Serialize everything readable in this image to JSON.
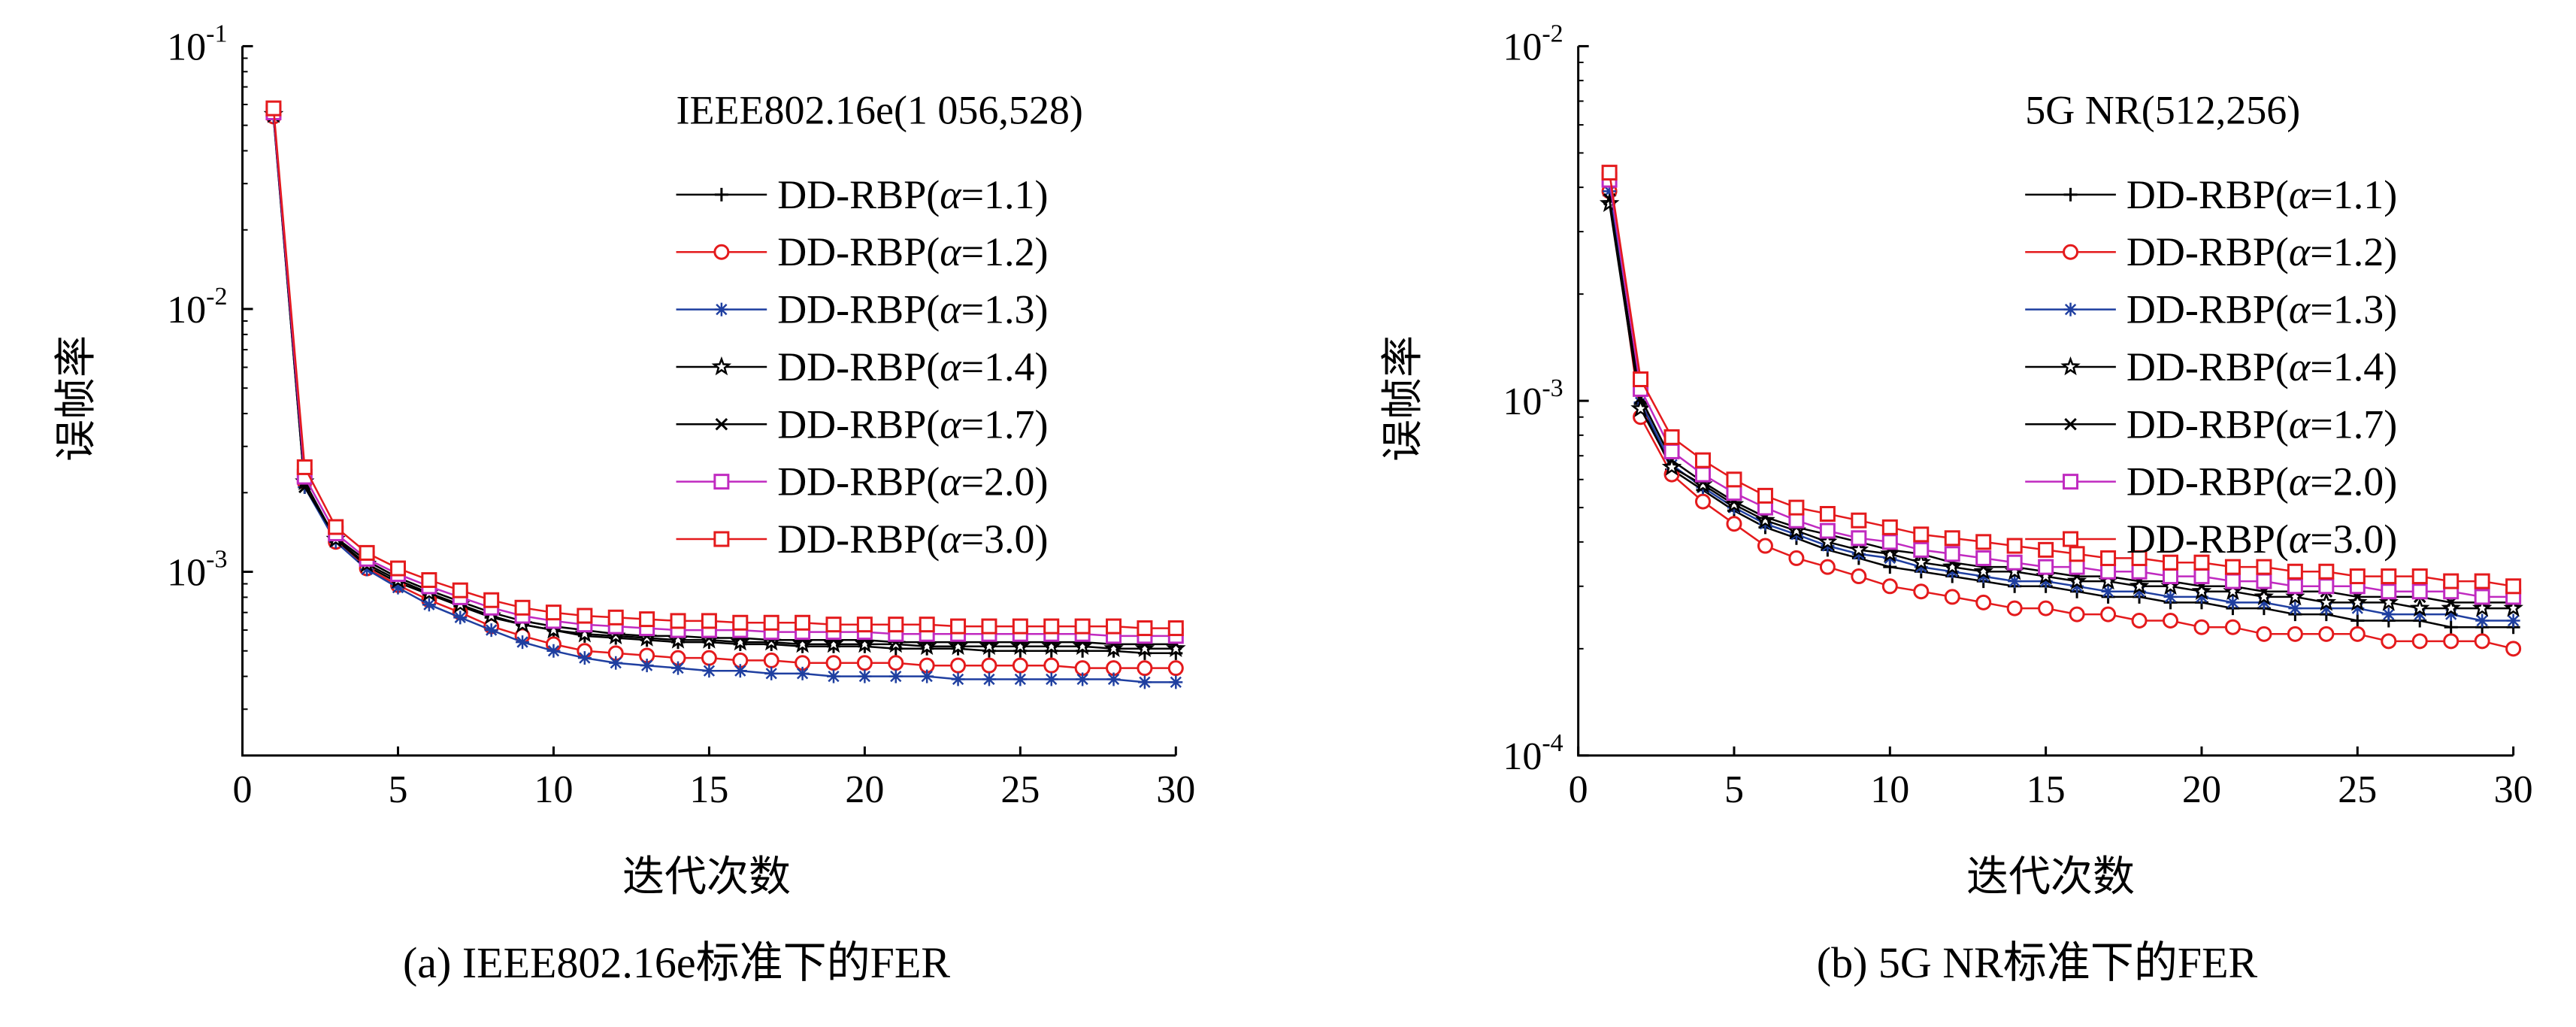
{
  "chart_data": [
    {
      "type": "line",
      "panel": "a",
      "title": "IEEE802.16e(1 056,528)",
      "xlabel": "迭代次数",
      "ylabel": "误帧率",
      "yscale": "log",
      "xlim": [
        0,
        30
      ],
      "ylim": [
        0.0002,
        0.1
      ],
      "xticks": [
        0,
        5,
        10,
        15,
        20,
        25,
        30
      ],
      "yticks": [
        {
          "value": 0.1,
          "base": "10",
          "exp": "-1"
        },
        {
          "value": 0.01,
          "base": "10",
          "exp": "-2"
        },
        {
          "value": 0.001,
          "base": "10",
          "exp": "-3"
        }
      ],
      "legend_position": "top-right",
      "x": [
        1,
        2,
        3,
        4,
        5,
        6,
        7,
        8,
        9,
        10,
        11,
        12,
        13,
        14,
        15,
        16,
        17,
        18,
        19,
        20,
        21,
        22,
        23,
        24,
        25,
        26,
        27,
        28,
        29,
        30
      ],
      "series": [
        {
          "name_prefix": "DD-RBP(",
          "alpha_symbol": "α",
          "name_value": "=1.1)",
          "color": "#000000",
          "marker": "plus",
          "values": [
            0.054,
            0.0021,
            0.00132,
            0.00105,
            0.00091,
            0.00082,
            0.00074,
            0.00067,
            0.00063,
            0.0006,
            0.00057,
            0.00056,
            0.00055,
            0.00054,
            0.00054,
            0.00053,
            0.00053,
            0.00052,
            0.00052,
            0.00052,
            0.00051,
            0.00051,
            0.00051,
            0.0005,
            0.0005,
            0.0005,
            0.0005,
            0.0005,
            0.00049,
            0.00049
          ]
        },
        {
          "name_prefix": "DD-RBP(",
          "alpha_symbol": "α",
          "name_value": "=1.2)",
          "color": "#e41a1c",
          "marker": "circle",
          "values": [
            0.054,
            0.0022,
            0.0013,
            0.00103,
            0.00089,
            0.00078,
            0.0007,
            0.00062,
            0.00057,
            0.00053,
            0.0005,
            0.00049,
            0.00048,
            0.00047,
            0.00047,
            0.00046,
            0.00046,
            0.00045,
            0.00045,
            0.00045,
            0.00045,
            0.00044,
            0.00044,
            0.00044,
            0.00044,
            0.00044,
            0.00043,
            0.00043,
            0.00043,
            0.00043
          ]
        },
        {
          "name_prefix": "DD-RBP(",
          "alpha_symbol": "α",
          "name_value": "=1.3)",
          "color": "#1f3fa0",
          "marker": "asterisk",
          "values": [
            0.054,
            0.0021,
            0.0013,
            0.00102,
            0.00087,
            0.00075,
            0.00067,
            0.0006,
            0.00054,
            0.0005,
            0.00047,
            0.00045,
            0.00044,
            0.00043,
            0.00042,
            0.00042,
            0.00041,
            0.00041,
            0.0004,
            0.0004,
            0.0004,
            0.0004,
            0.00039,
            0.00039,
            0.00039,
            0.00039,
            0.00039,
            0.00039,
            0.00038,
            0.00038
          ]
        },
        {
          "name_prefix": "DD-RBP(",
          "alpha_symbol": "α",
          "name_value": "=1.4)",
          "color": "#000000",
          "marker": "star",
          "values": [
            0.055,
            0.0022,
            0.00133,
            0.00107,
            0.00093,
            0.00083,
            0.00075,
            0.00068,
            0.00063,
            0.0006,
            0.00058,
            0.00057,
            0.00056,
            0.00055,
            0.00055,
            0.00054,
            0.00054,
            0.00053,
            0.00053,
            0.00053,
            0.00053,
            0.00052,
            0.00052,
            0.00052,
            0.00052,
            0.00052,
            0.00052,
            0.00051,
            0.00051,
            0.00051
          ]
        },
        {
          "name_prefix": "DD-RBP(",
          "alpha_symbol": "α",
          "name_value": "=1.7)",
          "color": "#000000",
          "marker": "x",
          "values": [
            0.055,
            0.0021,
            0.00135,
            0.0011,
            0.00095,
            0.00085,
            0.00077,
            0.0007,
            0.00065,
            0.00062,
            0.0006,
            0.00058,
            0.00057,
            0.00057,
            0.00056,
            0.00056,
            0.00055,
            0.00055,
            0.00055,
            0.00055,
            0.00054,
            0.00054,
            0.00054,
            0.00054,
            0.00054,
            0.00054,
            0.00054,
            0.00053,
            0.00053,
            0.00053
          ]
        },
        {
          "name_prefix": "DD-RBP(",
          "alpha_symbol": "α",
          "name_value": "=2.0)",
          "color": "#c02ac0",
          "marker": "square",
          "values": [
            0.056,
            0.0023,
            0.0014,
            0.00112,
            0.00098,
            0.00088,
            0.0008,
            0.00073,
            0.00068,
            0.00065,
            0.00063,
            0.00062,
            0.00061,
            0.0006,
            0.0006,
            0.0006,
            0.00059,
            0.00059,
            0.00059,
            0.00059,
            0.00058,
            0.00058,
            0.00058,
            0.00058,
            0.00058,
            0.00058,
            0.00058,
            0.00057,
            0.00057,
            0.00057
          ]
        },
        {
          "name_prefix": "DD-RBP(",
          "alpha_symbol": "α",
          "name_value": "=3.0)",
          "color": "#e41a1c",
          "marker": "square",
          "values": [
            0.058,
            0.0025,
            0.00148,
            0.00118,
            0.00103,
            0.00093,
            0.00085,
            0.00078,
            0.00073,
            0.0007,
            0.00068,
            0.00067,
            0.00066,
            0.00065,
            0.00065,
            0.00064,
            0.00064,
            0.00064,
            0.00063,
            0.00063,
            0.00063,
            0.00063,
            0.00062,
            0.00062,
            0.00062,
            0.00062,
            0.00062,
            0.00062,
            0.00061,
            0.00061
          ]
        }
      ]
    },
    {
      "type": "line",
      "panel": "b",
      "title": "5G NR(512,256)",
      "xlabel": "迭代次数",
      "ylabel": "误帧率",
      "yscale": "log",
      "xlim": [
        0,
        30
      ],
      "ylim": [
        0.0001,
        0.01
      ],
      "xticks": [
        0,
        5,
        10,
        15,
        20,
        25,
        30
      ],
      "yticks": [
        {
          "value": 0.01,
          "base": "10",
          "exp": "-2"
        },
        {
          "value": 0.001,
          "base": "10",
          "exp": "-3"
        },
        {
          "value": 0.0001,
          "base": "10",
          "exp": "-4"
        }
      ],
      "legend_position": "top-right",
      "x": [
        1,
        2,
        3,
        4,
        5,
        6,
        7,
        8,
        9,
        10,
        11,
        12,
        13,
        14,
        15,
        16,
        17,
        18,
        19,
        20,
        21,
        22,
        23,
        24,
        25,
        26,
        27,
        28,
        29,
        30
      ],
      "series": [
        {
          "name_prefix": "DD-RBP(",
          "alpha_symbol": "α",
          "name_value": "=1.1)",
          "color": "#000000",
          "marker": "plus",
          "values": [
            0.0038,
            0.00098,
            0.00064,
            0.00056,
            0.00049,
            0.00044,
            0.00041,
            0.00038,
            0.00036,
            0.00034,
            0.00033,
            0.00032,
            0.00031,
            0.0003,
            0.0003,
            0.00029,
            0.00028,
            0.00028,
            0.00027,
            0.00027,
            0.00026,
            0.00026,
            0.00025,
            0.00025,
            0.00024,
            0.00024,
            0.00024,
            0.00023,
            0.00023,
            0.00023
          ]
        },
        {
          "name_prefix": "DD-RBP(",
          "alpha_symbol": "α",
          "name_value": "=1.2)",
          "color": "#e41a1c",
          "marker": "circle",
          "values": [
            0.0039,
            0.0009,
            0.00062,
            0.00052,
            0.00045,
            0.00039,
            0.00036,
            0.00034,
            0.00032,
            0.0003,
            0.00029,
            0.00028,
            0.00027,
            0.00026,
            0.00026,
            0.00025,
            0.00025,
            0.00024,
            0.00024,
            0.00023,
            0.00023,
            0.00022,
            0.00022,
            0.00022,
            0.00022,
            0.00021,
            0.00021,
            0.00021,
            0.00021,
            0.0002
          ]
        },
        {
          "name_prefix": "DD-RBP(",
          "alpha_symbol": "α",
          "name_value": "=1.3)",
          "color": "#1f3fa0",
          "marker": "asterisk",
          "values": [
            0.0039,
            0.00099,
            0.00066,
            0.00057,
            0.0005,
            0.00045,
            0.00042,
            0.00039,
            0.00037,
            0.00036,
            0.00034,
            0.00033,
            0.00032,
            0.00031,
            0.00031,
            0.0003,
            0.00029,
            0.00029,
            0.00028,
            0.00028,
            0.00027,
            0.00027,
            0.00026,
            0.00026,
            0.00026,
            0.00025,
            0.00025,
            0.00025,
            0.00024,
            0.00024
          ]
        },
        {
          "name_prefix": "DD-RBP(",
          "alpha_symbol": "α",
          "name_value": "=1.4)",
          "color": "#000000",
          "marker": "star",
          "values": [
            0.0036,
            0.00095,
            0.00065,
            0.00058,
            0.00051,
            0.00046,
            0.00043,
            0.0004,
            0.00038,
            0.00037,
            0.00035,
            0.00034,
            0.00033,
            0.00033,
            0.00032,
            0.00031,
            0.00031,
            0.0003,
            0.0003,
            0.00029,
            0.00029,
            0.00028,
            0.00028,
            0.00027,
            0.00027,
            0.00027,
            0.00026,
            0.00026,
            0.00026,
            0.00026
          ]
        },
        {
          "name_prefix": "DD-RBP(",
          "alpha_symbol": "α",
          "name_value": "=1.7)",
          "color": "#000000",
          "marker": "x",
          "values": [
            0.0037,
            0.00102,
            0.00068,
            0.00059,
            0.00052,
            0.00047,
            0.00044,
            0.00042,
            0.0004,
            0.00038,
            0.00037,
            0.00035,
            0.00034,
            0.00034,
            0.00033,
            0.00032,
            0.00032,
            0.00031,
            0.00031,
            0.0003,
            0.0003,
            0.00029,
            0.00029,
            0.00029,
            0.00028,
            0.00028,
            0.00028,
            0.00027,
            0.00027,
            0.00027
          ]
        },
        {
          "name_prefix": "DD-RBP(",
          "alpha_symbol": "α",
          "name_value": "=2.0)",
          "color": "#c02ac0",
          "marker": "square",
          "values": [
            0.0042,
            0.00108,
            0.00072,
            0.00062,
            0.00055,
            0.0005,
            0.00046,
            0.00043,
            0.00041,
            0.0004,
            0.00038,
            0.00037,
            0.00036,
            0.00035,
            0.00034,
            0.00034,
            0.00033,
            0.00033,
            0.00032,
            0.00032,
            0.00031,
            0.00031,
            0.0003,
            0.0003,
            0.0003,
            0.00029,
            0.00029,
            0.00029,
            0.00028,
            0.00028
          ]
        },
        {
          "name_prefix": "DD-RBP(",
          "alpha_symbol": "α",
          "name_value": "=3.0)",
          "color": "#e41a1c",
          "marker": "square",
          "values": [
            0.0044,
            0.00115,
            0.00079,
            0.00068,
            0.0006,
            0.00054,
            0.0005,
            0.00048,
            0.00046,
            0.00044,
            0.00042,
            0.00041,
            0.0004,
            0.00039,
            0.00038,
            0.00037,
            0.00036,
            0.00036,
            0.00035,
            0.00035,
            0.00034,
            0.00034,
            0.00033,
            0.00033,
            0.00032,
            0.00032,
            0.00032,
            0.00031,
            0.00031,
            0.0003
          ]
        }
      ]
    }
  ],
  "captions": {
    "a": "(a) IEEE802.16e标准下的FER",
    "b": "(b) 5G NR标准下的FER"
  }
}
